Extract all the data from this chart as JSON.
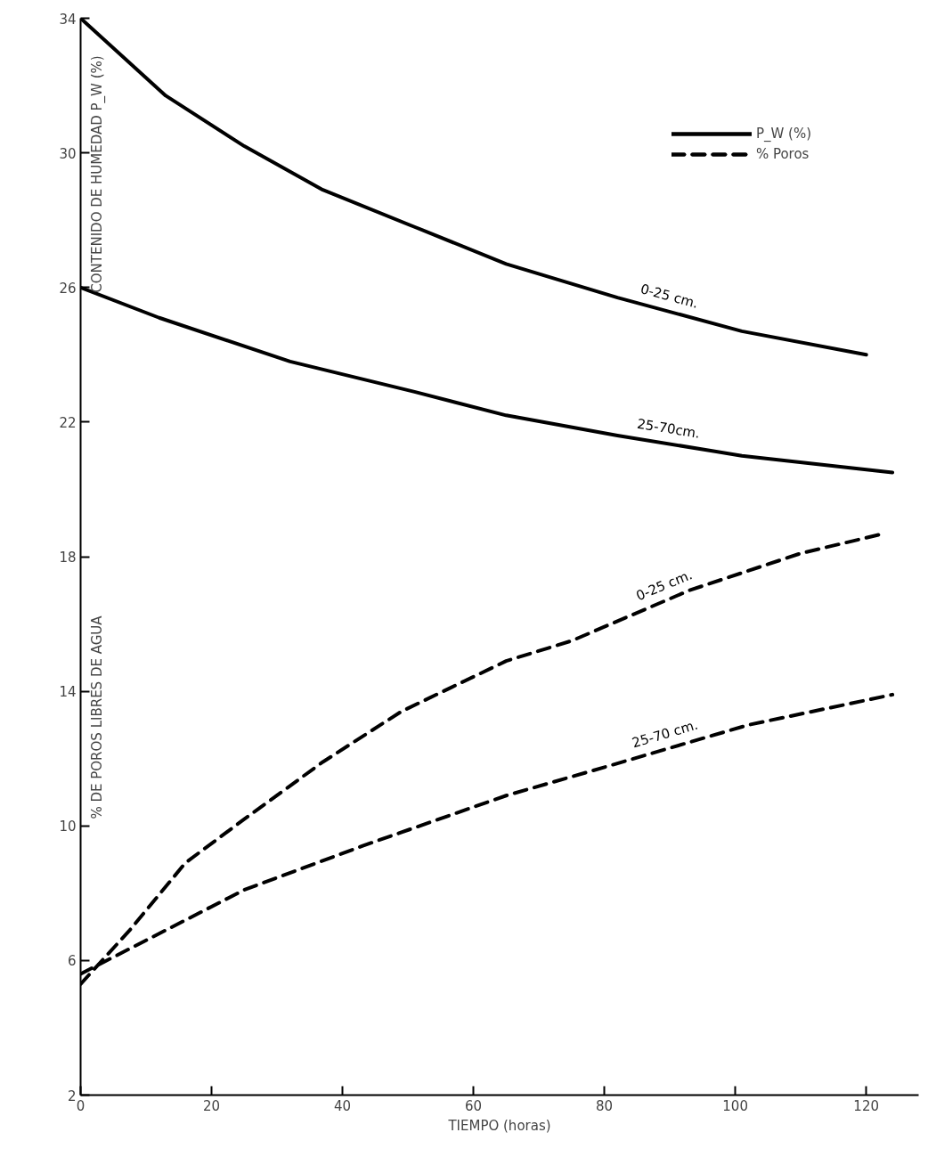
{
  "chart_data": {
    "type": "line",
    "xlabel": "TIEMPO (horas)",
    "ylabel": "CONTENIDO DE HUMEDAD P_W (%)",
    "xlim": [
      0,
      128
    ],
    "ylim": [
      2,
      34
    ],
    "xticks": [
      0,
      20,
      40,
      60,
      80,
      100,
      120
    ],
    "yticks": [
      2,
      6,
      10,
      14,
      18,
      22,
      26,
      30,
      34
    ],
    "grid": false,
    "legend": "top right",
    "series": [
      {
        "name": "0-25 cm.",
        "color": "#000000",
        "line_style": "solid",
        "x": [
          0,
          13,
          25,
          37,
          51,
          65,
          82,
          101,
          120
        ],
        "values": [
          34,
          31.7,
          30.2,
          28.9,
          27.8,
          26.7,
          25.7,
          24.7,
          24.0
        ]
      },
      {
        "name": "25-70cm.",
        "color": "#000000",
        "line_style": "solid",
        "x": [
          0,
          12,
          32,
          51,
          65,
          82,
          101,
          124
        ],
        "values": [
          26,
          25.1,
          23.8,
          22.9,
          22.2,
          21.6,
          21.0,
          20.5
        ]
      },
      {
        "name": "0-25 cm.",
        "color": "#000000",
        "line_style": "dashed",
        "x": [
          0,
          7.5,
          16,
          25,
          37,
          49,
          65,
          75,
          93,
          110,
          123
        ],
        "values": [
          5.3,
          6.9,
          8.9,
          10.2,
          11.9,
          13.4,
          14.9,
          15.5,
          17.0,
          18.1,
          18.7
        ]
      },
      {
        "name": "25-70 cm.",
        "color": "#000000",
        "line_style": "dashed",
        "x": [
          0,
          10,
          25,
          43,
          65,
          81,
          102,
          124
        ],
        "values": [
          5.6,
          6.6,
          8.1,
          9.4,
          10.9,
          11.8,
          13.0,
          13.9
        ]
      }
    ],
    "annotations": [
      "% DE POROS LIBRES DE AGUA",
      "P_W (%)",
      "% Poros"
    ]
  }
}
